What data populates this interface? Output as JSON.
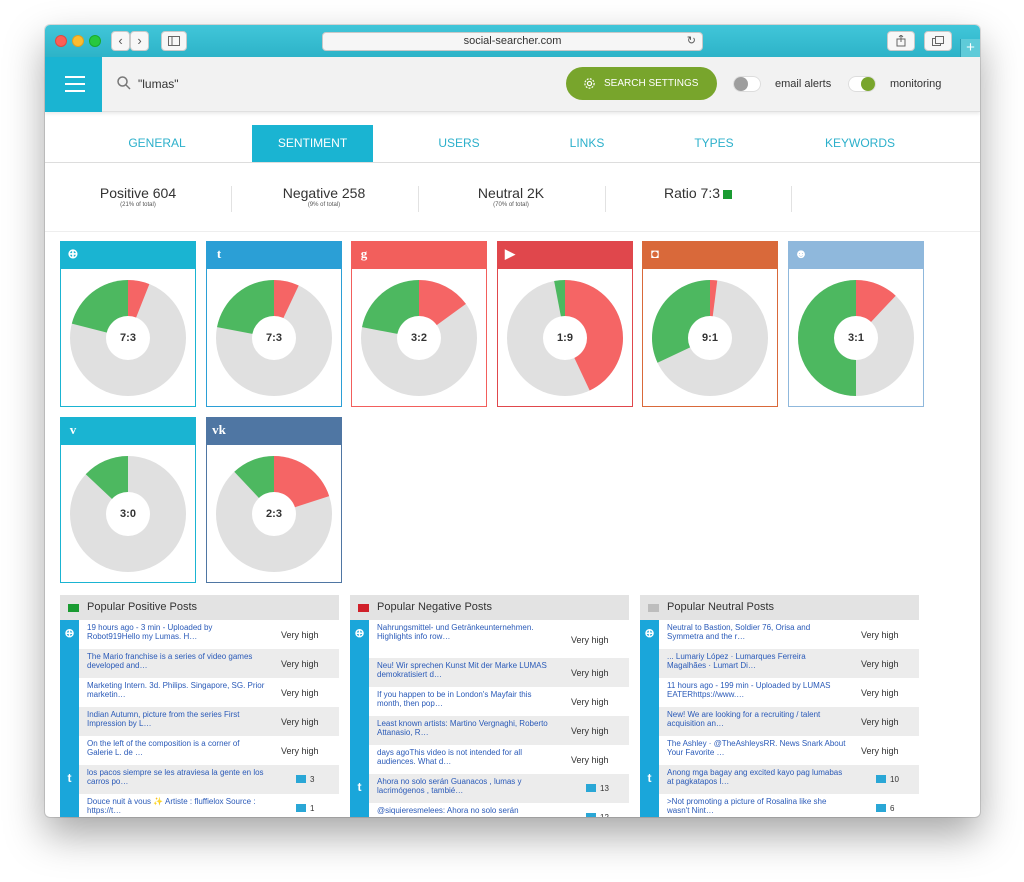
{
  "browser": {
    "url": "social-searcher.com",
    "reload_glyph": "↻",
    "back_glyph": "‹",
    "forward_glyph": "›",
    "new_tab_glyph": "+"
  },
  "header": {
    "search_query": "\"lumas\"",
    "settings_label": "SEARCH SETTINGS",
    "email_alerts_label": "email alerts",
    "monitoring_label": "monitoring",
    "email_alerts_on": false,
    "monitoring_on": true
  },
  "tabs": [
    {
      "label": "GENERAL",
      "active": false
    },
    {
      "label": "SENTIMENT",
      "active": true
    },
    {
      "label": "USERS",
      "active": false
    },
    {
      "label": "LINKS",
      "active": false
    },
    {
      "label": "TYPES",
      "active": false
    },
    {
      "label": "KEYWORDS",
      "active": false
    }
  ],
  "stats": [
    {
      "label": "Positive 604",
      "sub": "(21% of total)"
    },
    {
      "label": "Negative 258",
      "sub": "(9% of total)"
    },
    {
      "label": "Neutral 2K",
      "sub": "(70% of total)"
    },
    {
      "label": "Ratio 7:3",
      "sub": ""
    }
  ],
  "colors": {
    "positive": "#4db860",
    "negative": "#f56565",
    "neutral": "#e0e0e0",
    "accent": "#1ab4d2",
    "settings_green": "#78a52c"
  },
  "networks": [
    {
      "name": "web",
      "icon": "globe-icon",
      "glyph": "⊕",
      "color": "#1ab4d2",
      "ratio": "7:3",
      "positive": 0.21,
      "negative": 0.06
    },
    {
      "name": "twitter",
      "icon": "twitter-icon",
      "glyph": "t",
      "color": "#2b9fd6",
      "ratio": "7:3",
      "positive": 0.22,
      "negative": 0.07
    },
    {
      "name": "google",
      "icon": "google-plus-icon",
      "glyph": "g",
      "color": "#f25f5c",
      "ratio": "3:2",
      "positive": 0.22,
      "negative": 0.15
    },
    {
      "name": "youtube",
      "icon": "youtube-icon",
      "glyph": "▶",
      "color": "#e0474c",
      "ratio": "1:9",
      "positive": 0.03,
      "negative": 0.43
    },
    {
      "name": "instagram",
      "icon": "instagram-icon",
      "glyph": "◘",
      "color": "#d9693a",
      "ratio": "9:1",
      "positive": 0.32,
      "negative": 0.02
    },
    {
      "name": "reddit",
      "icon": "reddit-icon",
      "glyph": "☻",
      "color": "#8fb8dc",
      "ratio": "3:1",
      "positive": 0.5,
      "negative": 0.12
    },
    {
      "name": "vimeo",
      "icon": "vimeo-icon",
      "glyph": "v",
      "color": "#1ab4d2",
      "ratio": "3:0",
      "positive": 0.13,
      "negative": 0.0
    },
    {
      "name": "vk",
      "icon": "vk-icon",
      "glyph": "vk",
      "color": "#4f76a3",
      "ratio": "2:3",
      "positive": 0.12,
      "negative": 0.2
    }
  ],
  "popular": [
    {
      "title": "Popular Positive Posts",
      "square": "#1a9b32",
      "groups": [
        {
          "icon": "globe-icon",
          "glyph": "⊕",
          "rows": [
            {
              "text": "19 hours ago - 3 min - Uploaded by Robot919Hello my Lumas. H…",
              "value": "Very high"
            },
            {
              "text": "The Mario franchise is a series of video games developed and…",
              "value": "Very high"
            },
            {
              "text": "Marketing Intern. 3d. Philips. Singapore, SG. Prior marketin…",
              "value": "Very high"
            },
            {
              "text": "Indian Autumn, picture from the series First Impression by L…",
              "value": "Very high"
            },
            {
              "text": "On the left of the composition is a corner of Galerie L. de …",
              "value": "Very high"
            }
          ]
        },
        {
          "icon": "twitter-icon",
          "glyph": "t",
          "rows": [
            {
              "text": "los pacos siempre se les atraviesa la gente en los carros po…",
              "num": "3"
            },
            {
              "text": "Douce nuit à vous ✨ Artiste : fluffielox Source : https://t…",
              "num": "1"
            }
          ]
        }
      ]
    },
    {
      "title": "Popular Negative Posts",
      "square": "#d0202a",
      "groups": [
        {
          "icon": "globe-icon",
          "glyph": "⊕",
          "rows": [
            {
              "text": "Nahrungsmittel- und Getränkeunternehmen. Highlights info row…",
              "value": "Very high",
              "tall": true
            },
            {
              "text": "Neu! Wir sprechen Kunst Mit der Marke LUMAS demokratisiert d…",
              "value": "Very high"
            },
            {
              "text": "If you happen to be in London's Mayfair this month, then pop…",
              "value": "Very high"
            },
            {
              "text": "Least known artists: Martino Vergnaghi, Roberto Attanasio, R…",
              "value": "Very high"
            },
            {
              "text": "days agoThis video is not intended for all audiences. What d…",
              "value": "Very high"
            }
          ]
        },
        {
          "icon": "twitter-icon",
          "glyph": "t",
          "rows": [
            {
              "text": "Ahora no solo serán Guanacos , lumas y lacrimógenos , tambié…",
              "num": "13"
            },
            {
              "text": "@siquieresmelees: Ahora no solo serán",
              "num": "12"
            }
          ]
        }
      ]
    },
    {
      "title": "Popular Neutral Posts",
      "square": "#bdbdbd",
      "groups": [
        {
          "icon": "globe-icon",
          "glyph": "⊕",
          "rows": [
            {
              "text": "Neutral to Bastion, Soldier 76, Orisa and Symmetra and the r…",
              "value": "Very high"
            },
            {
              "text": "... Lumariy López · Lumarques Ferreira Magalhães · Lumart Di…",
              "value": "Very high"
            },
            {
              "text": "11 hours ago - 199 min - Uploaded by LUMAS EATERhttps://www.…",
              "value": "Very high"
            },
            {
              "text": "New! We are looking for a recruiting / talent acquisition an…",
              "value": "Very high"
            },
            {
              "text": "The Ashley · @TheAshleysRR. News Snark About Your Favorite …",
              "value": "Very high"
            }
          ]
        },
        {
          "icon": "twitter-icon",
          "glyph": "t",
          "rows": [
            {
              "text": "Anong mga bagay ang excited kayo pag lumabas at pagkatapos l…",
              "num": "10"
            },
            {
              "text": ">Not promoting a picture of Rosalina like she wasn't Nint…",
              "num": "6"
            }
          ]
        }
      ]
    }
  ]
}
